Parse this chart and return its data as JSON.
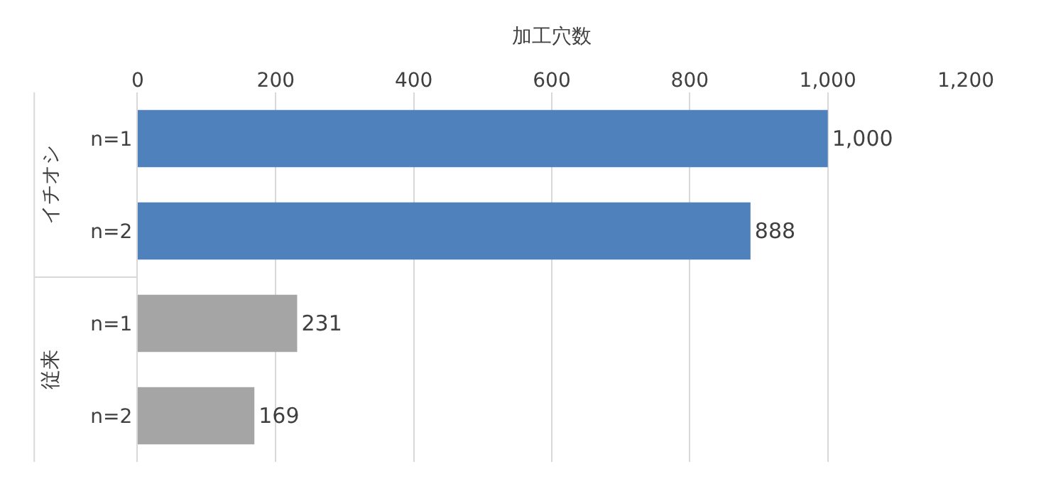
{
  "chart_data": {
    "type": "bar",
    "orientation": "horizontal",
    "xlabel": "加工穴数",
    "categories": [
      "n=1",
      "n=2",
      "n=1",
      "n=2"
    ],
    "series": [
      {
        "color": "#4f81bd",
        "values": [
          1000,
          888,
          null,
          null
        ],
        "value_labels": [
          "1,000",
          "888",
          null,
          null
        ]
      },
      {
        "color": "#a5a5a5",
        "values": [
          null,
          null,
          231,
          169
        ],
        "value_labels": [
          null,
          null,
          "231",
          "169"
        ]
      }
    ],
    "xlim": [
      0,
      1200
    ],
    "xticks": [
      0,
      200,
      400,
      600,
      800,
      {
        "value": 1000,
        "label": "1,000"
      },
      {
        "value": 1200,
        "label": "1,200"
      }
    ],
    "annotations": [
      "イチオシ",
      "従来"
    ],
    "grid": "x",
    "legend": false
  }
}
